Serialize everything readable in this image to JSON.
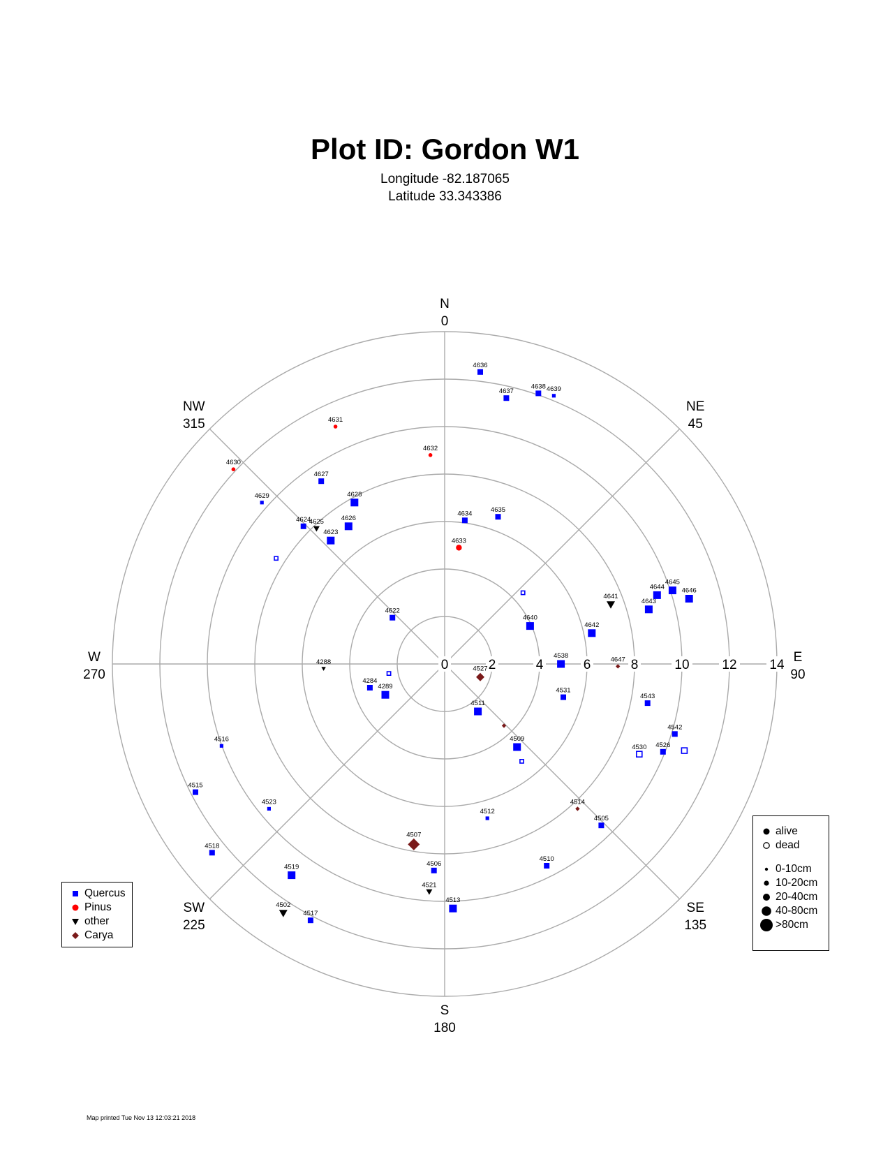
{
  "header": {
    "title": "Plot ID:  Gordon W1",
    "longitude": "Longitude -82.187065",
    "latitude": "Latitude 33.343386"
  },
  "footer": {
    "printed": "Map printed Tue Nov 13 12:03:21 2018"
  },
  "colors": {
    "Quercus": "#0000ff",
    "Pinus": "#ff0000",
    "other": "#000000",
    "Carya": "#7a1a1a",
    "grid": "#aaaaaa"
  },
  "legend_species": [
    {
      "label": "Quercus",
      "shape": "square",
      "color": "#0000ff"
    },
    {
      "label": "Pinus",
      "shape": "circle",
      "color": "#ff0000"
    },
    {
      "label": "other",
      "shape": "triangle",
      "color": "#000000"
    },
    {
      "label": "Carya",
      "shape": "diamond",
      "color": "#7a1a1a"
    }
  ],
  "legend_status": [
    {
      "label": "alive",
      "filled": true
    },
    {
      "label": "dead",
      "filled": false
    }
  ],
  "legend_sizes": [
    {
      "label": "0-10cm",
      "class": 1
    },
    {
      "label": "10-20cm",
      "class": 2
    },
    {
      "label": "20-40cm",
      "class": 3
    },
    {
      "label": "40-80cm",
      "class": 4
    },
    {
      "label": ">80cm",
      "class": 5
    }
  ],
  "chart_data": {
    "type": "scatter",
    "coordinate_system": "polar",
    "radial_axis": {
      "range": [
        0,
        14
      ],
      "rings": [
        2,
        4,
        6,
        8,
        10,
        12,
        14
      ],
      "tick_labels": [
        "0",
        "2",
        "4",
        "6",
        "8",
        "10",
        "12",
        "14"
      ]
    },
    "directions": [
      {
        "name": "N",
        "deg": "0",
        "azimuth": 0
      },
      {
        "name": "NE",
        "deg": "45",
        "azimuth": 45
      },
      {
        "name": "E",
        "deg": "90",
        "azimuth": 90
      },
      {
        "name": "SE",
        "deg": "135",
        "azimuth": 135
      },
      {
        "name": "S",
        "deg": "180",
        "azimuth": 180
      },
      {
        "name": "SW",
        "deg": "225",
        "azimuth": 225
      },
      {
        "name": "W",
        "deg": "270",
        "azimuth": 270
      },
      {
        "name": "NW",
        "deg": "315",
        "azimuth": 315
      }
    ],
    "points": [
      {
        "id": "4636",
        "species": "Quercus",
        "status": "alive",
        "size": 2,
        "x": 1.5,
        "y": 12.3
      },
      {
        "id": "4637",
        "species": "Quercus",
        "status": "alive",
        "size": 2,
        "x": 2.6,
        "y": 11.2
      },
      {
        "id": "4638",
        "species": "Quercus",
        "status": "alive",
        "size": 2,
        "x": 3.95,
        "y": 11.4
      },
      {
        "id": "4639",
        "species": "Quercus",
        "status": "alive",
        "size": 1,
        "x": 4.6,
        "y": 11.3
      },
      {
        "id": "4631",
        "species": "Pinus",
        "status": "alive",
        "size": 1,
        "x": -4.6,
        "y": 10.0
      },
      {
        "id": "4632",
        "species": "Pinus",
        "status": "alive",
        "size": 1,
        "x": -0.6,
        "y": 8.8
      },
      {
        "id": "4630",
        "species": "Pinus",
        "status": "alive",
        "size": 1,
        "x": -8.9,
        "y": 8.2
      },
      {
        "id": "4627",
        "species": "Quercus",
        "status": "alive",
        "size": 2,
        "x": -5.2,
        "y": 7.7
      },
      {
        "id": "4628",
        "species": "Quercus",
        "status": "alive",
        "size": 3,
        "x": -3.8,
        "y": 6.8
      },
      {
        "id": "4629",
        "species": "Quercus",
        "status": "alive",
        "size": 1,
        "x": -7.7,
        "y": 6.8
      },
      {
        "id": "4624",
        "species": "Quercus",
        "status": "alive",
        "size": 2,
        "x": -5.95,
        "y": 5.8
      },
      {
        "id": "4625",
        "species": "other",
        "status": "alive",
        "size": 2,
        "x": -5.4,
        "y": 5.7
      },
      {
        "id": "4626",
        "species": "Quercus",
        "status": "alive",
        "size": 3,
        "x": -4.05,
        "y": 5.8
      },
      {
        "id": "4623",
        "species": "Quercus",
        "status": "alive",
        "size": 3,
        "x": -4.8,
        "y": 5.2
      },
      {
        "id": "",
        "species": "Quercus",
        "status": "dead",
        "size": 1,
        "x": -7.1,
        "y": 4.45
      },
      {
        "id": "4634",
        "species": "Quercus",
        "status": "alive",
        "size": 2,
        "x": 0.85,
        "y": 6.05
      },
      {
        "id": "4635",
        "species": "Quercus",
        "status": "alive",
        "size": 2,
        "x": 2.25,
        "y": 6.2
      },
      {
        "id": "4633",
        "species": "Pinus",
        "status": "alive",
        "size": 2,
        "x": 0.6,
        "y": 4.9
      },
      {
        "id": "4622",
        "species": "Quercus",
        "status": "alive",
        "size": 2,
        "x": -2.2,
        "y": 1.95
      },
      {
        "id": "",
        "species": "Quercus",
        "status": "dead",
        "size": 1,
        "x": 3.3,
        "y": 3.0
      },
      {
        "id": "4640",
        "species": "Quercus",
        "status": "alive",
        "size": 3,
        "x": 3.6,
        "y": 1.6
      },
      {
        "id": "4641",
        "species": "other",
        "status": "alive",
        "size": 3,
        "x": 7.0,
        "y": 2.5
      },
      {
        "id": "4642",
        "species": "Quercus",
        "status": "alive",
        "size": 3,
        "x": 6.2,
        "y": 1.3
      },
      {
        "id": "4643",
        "species": "Quercus",
        "status": "alive",
        "size": 3,
        "x": 8.6,
        "y": 2.3
      },
      {
        "id": "4644",
        "species": "Quercus",
        "status": "alive",
        "size": 3,
        "x": 8.95,
        "y": 2.9
      },
      {
        "id": "4645",
        "species": "Quercus",
        "status": "alive",
        "size": 3,
        "x": 9.6,
        "y": 3.1
      },
      {
        "id": "4646",
        "species": "Quercus",
        "status": "alive",
        "size": 3,
        "x": 10.3,
        "y": 2.75
      },
      {
        "id": "4538",
        "species": "Quercus",
        "status": "alive",
        "size": 3,
        "x": 4.9,
        "y": 0.0
      },
      {
        "id": "4647",
        "species": "Carya",
        "status": "alive",
        "size": 1,
        "x": 7.3,
        "y": -0.1
      },
      {
        "id": "4288",
        "species": "other",
        "status": "alive",
        "size": 1,
        "x": -5.1,
        "y": -0.2
      },
      {
        "id": "4284",
        "species": "Quercus",
        "status": "alive",
        "size": 2,
        "x": -3.15,
        "y": -1.0
      },
      {
        "id": "",
        "species": "Quercus",
        "status": "dead",
        "size": 1,
        "x": -2.35,
        "y": -0.4
      },
      {
        "id": "4289",
        "species": "Quercus",
        "status": "alive",
        "size": 3,
        "x": -2.5,
        "y": -1.3
      },
      {
        "id": "4527",
        "species": "Carya",
        "status": "alive",
        "size": 3,
        "x": 1.5,
        "y": -0.55
      },
      {
        "id": "4511",
        "species": "Quercus",
        "status": "alive",
        "size": 3,
        "x": 1.4,
        "y": -2.0
      },
      {
        "id": "4531",
        "species": "Quercus",
        "status": "alive",
        "size": 2,
        "x": 5.0,
        "y": -1.4
      },
      {
        "id": "4543",
        "species": "Quercus",
        "status": "alive",
        "size": 2,
        "x": 8.55,
        "y": -1.65
      },
      {
        "id": "",
        "species": "Carya",
        "status": "alive",
        "size": 1,
        "x": 2.5,
        "y": -2.6
      },
      {
        "id": "4509",
        "species": "Quercus",
        "status": "alive",
        "size": 3,
        "x": 3.05,
        "y": -3.5
      },
      {
        "id": "",
        "species": "Quercus",
        "status": "dead",
        "size": 1,
        "x": 3.25,
        "y": -4.1
      },
      {
        "id": "4542",
        "species": "Quercus",
        "status": "alive",
        "size": 2,
        "x": 9.7,
        "y": -2.95
      },
      {
        "id": "4530",
        "species": "Quercus",
        "status": "dead",
        "size": 2,
        "x": 8.2,
        "y": -3.8
      },
      {
        "id": "4526",
        "species": "Quercus",
        "status": "alive",
        "size": 2,
        "x": 9.2,
        "y": -3.7
      },
      {
        "id": "",
        "species": "Quercus",
        "status": "dead",
        "size": 2,
        "x": 10.1,
        "y": -3.65
      },
      {
        "id": "4514",
        "species": "Carya",
        "status": "alive",
        "size": 1,
        "x": 5.6,
        "y": -6.1
      },
      {
        "id": "4505",
        "species": "Quercus",
        "status": "alive",
        "size": 2,
        "x": 6.6,
        "y": -6.8
      },
      {
        "id": "4512",
        "species": "Quercus",
        "status": "alive",
        "size": 1,
        "x": 1.8,
        "y": -6.5
      },
      {
        "id": "4510",
        "species": "Quercus",
        "status": "alive",
        "size": 2,
        "x": 4.3,
        "y": -8.5
      },
      {
        "id": "4507",
        "species": "Carya",
        "status": "alive",
        "size": 4,
        "x": -1.3,
        "y": -7.6
      },
      {
        "id": "4506",
        "species": "Quercus",
        "status": "alive",
        "size": 2,
        "x": -0.45,
        "y": -8.7
      },
      {
        "id": "4521",
        "species": "other",
        "status": "alive",
        "size": 2,
        "x": -0.65,
        "y": -9.6
      },
      {
        "id": "4513",
        "species": "Quercus",
        "status": "alive",
        "size": 3,
        "x": 0.35,
        "y": -10.3
      },
      {
        "id": "4516",
        "species": "Quercus",
        "status": "alive",
        "size": 1,
        "x": -9.4,
        "y": -3.45
      },
      {
        "id": "4515",
        "species": "Quercus",
        "status": "alive",
        "size": 2,
        "x": -10.5,
        "y": -5.4
      },
      {
        "id": "4523",
        "species": "Quercus",
        "status": "alive",
        "size": 1,
        "x": -7.4,
        "y": -6.1
      },
      {
        "id": "4518",
        "species": "Quercus",
        "status": "alive",
        "size": 2,
        "x": -9.8,
        "y": -7.95
      },
      {
        "id": "4519",
        "species": "Quercus",
        "status": "alive",
        "size": 3,
        "x": -6.45,
        "y": -8.9
      },
      {
        "id": "4502",
        "species": "other",
        "status": "alive",
        "size": 3,
        "x": -6.8,
        "y": -10.5
      },
      {
        "id": "4517",
        "species": "Quercus",
        "status": "alive",
        "size": 2,
        "x": -5.65,
        "y": -10.8
      }
    ]
  }
}
